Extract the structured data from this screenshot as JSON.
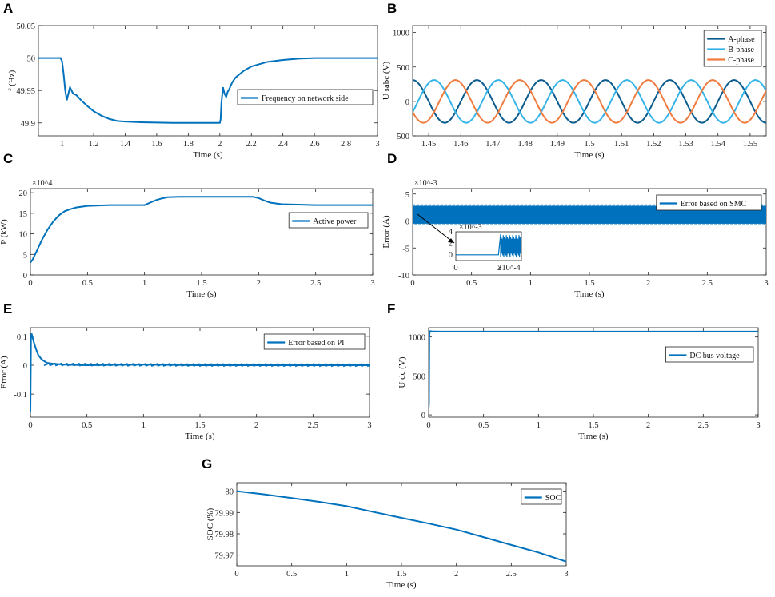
{
  "colors": {
    "blue": "#0072BD",
    "dark_blue": "#0B5C8E",
    "light_blue": "#33B3E8",
    "orange": "#F07B3F",
    "axis": "#222222"
  },
  "chart_data": [
    {
      "id": "A",
      "type": "line",
      "xlabel": "Time (s)",
      "ylabel": "f (Hz)",
      "xlim": [
        0.85,
        3.0
      ],
      "ylim": [
        49.88,
        50.05
      ],
      "xticks": [
        "1",
        "1.2",
        "1.4",
        "1.6",
        "1.8",
        "2",
        "2.2",
        "2.4",
        "2.6",
        "2.8",
        "3"
      ],
      "yticks": [
        "49.9",
        "49.95",
        "50",
        "50.05"
      ],
      "legend": [
        "Frequency on network side"
      ],
      "legend_position": "center-right",
      "series": [
        {
          "name": "Frequency on network side",
          "x": [
            0.85,
            0.99,
            1.0,
            1.01,
            1.02,
            1.03,
            1.04,
            1.05,
            1.06,
            1.07,
            1.09,
            1.12,
            1.16,
            1.2,
            1.25,
            1.3,
            1.35,
            1.4,
            1.5,
            1.6,
            1.7,
            1.8,
            1.9,
            2.0,
            2.005,
            2.01,
            2.02,
            2.03,
            2.04,
            2.05,
            2.06,
            2.07,
            2.08,
            2.1,
            2.15,
            2.2,
            2.3,
            2.4,
            2.5,
            2.6,
            2.8,
            3.0
          ],
          "y": [
            50.0,
            50.0,
            49.995,
            49.975,
            49.95,
            49.935,
            49.945,
            49.955,
            49.95,
            49.945,
            49.943,
            49.935,
            49.926,
            49.918,
            49.911,
            49.906,
            49.903,
            49.902,
            49.901,
            49.9005,
            49.9,
            49.9,
            49.9,
            49.9,
            49.905,
            49.93,
            49.955,
            49.945,
            49.94,
            49.948,
            49.952,
            49.958,
            49.963,
            49.97,
            49.98,
            49.987,
            49.994,
            49.997,
            49.999,
            50.0,
            50.0,
            50.0
          ]
        }
      ]
    },
    {
      "id": "B",
      "type": "line",
      "xlabel": "Time (s)",
      "ylabel": "U sabc (V)",
      "xlim": [
        1.445,
        1.555
      ],
      "ylim": [
        -500,
        1100
      ],
      "xticks": [
        "1.45",
        "1.46",
        "1.47",
        "1.48",
        "1.49",
        "1.5",
        "1.51",
        "1.52",
        "1.53",
        "1.54",
        "1.55"
      ],
      "yticks": [
        "-500",
        "0",
        "500",
        "1000"
      ],
      "legend": [
        "A-phase",
        "B-phase",
        "C-phase"
      ],
      "legend_position": "top-right",
      "amplitude": 310,
      "frequency_hz": 50,
      "series": [
        {
          "name": "A-phase",
          "phase_deg": 0
        },
        {
          "name": "B-phase",
          "phase_deg": -120
        },
        {
          "name": "C-phase",
          "phase_deg": 120
        }
      ]
    },
    {
      "id": "C",
      "type": "line",
      "xlabel": "Time (s)",
      "ylabel": "P (kW)",
      "xlim": [
        0,
        3
      ],
      "ylim": [
        0,
        21
      ],
      "xticks": [
        "0",
        "0.5",
        "1",
        "1.5",
        "2",
        "2.5",
        "3"
      ],
      "yticks": [
        "0",
        "5",
        "10",
        "15",
        "20"
      ],
      "y_exponent": "×10^4",
      "legend": [
        "Active power"
      ],
      "legend_position": "center-right",
      "series": [
        {
          "name": "Active power",
          "x": [
            0,
            0.02,
            0.05,
            0.1,
            0.15,
            0.2,
            0.25,
            0.3,
            0.35,
            0.4,
            0.5,
            0.6,
            0.7,
            0.8,
            1.0,
            1.05,
            1.1,
            1.15,
            1.2,
            1.3,
            1.5,
            1.7,
            1.9,
            1.95,
            2.0,
            2.05,
            2.1,
            2.2,
            2.5,
            3.0
          ],
          "y": [
            3,
            3.8,
            5.5,
            8.5,
            11,
            13,
            14.5,
            15.5,
            16,
            16.4,
            16.8,
            16.9,
            17,
            17,
            17,
            17.6,
            18.2,
            18.6,
            18.9,
            19,
            19,
            19,
            19,
            19,
            18.7,
            18.1,
            17.6,
            17.2,
            17,
            17
          ]
        }
      ]
    },
    {
      "id": "D",
      "type": "line",
      "xlabel": "Time (s)",
      "ylabel": "Error (A)",
      "xlim": [
        0,
        3
      ],
      "ylim": [
        -10,
        6
      ],
      "xticks": [
        "0",
        "0.5",
        "1",
        "1.5",
        "2",
        "2.5",
        "3"
      ],
      "yticks": [
        "-10",
        "-5",
        "0",
        "5"
      ],
      "y_exponent": "×10^-3",
      "legend": [
        "Error based on SMC"
      ],
      "legend_position": "top-right",
      "series": [
        {
          "name": "Error based on SMC",
          "band": [
            -0.5,
            2.8
          ]
        }
      ],
      "inset": {
        "xlim": [
          0,
          3
        ],
        "ylim": [
          -1,
          4
        ],
        "xticks": [
          "0",
          "2"
        ],
        "yticks": [
          "0",
          "2",
          "4"
        ],
        "x_exponent": "×10^-4",
        "y_exponent": "×10^-3"
      }
    },
    {
      "id": "E",
      "type": "line",
      "xlabel": "Time (s)",
      "ylabel": "Error (A)",
      "xlim": [
        0,
        3
      ],
      "ylim": [
        -0.18,
        0.13
      ],
      "xticks": [
        "0",
        "0.5",
        "1",
        "1.5",
        "2",
        "2.5",
        "3"
      ],
      "yticks": [
        "-0.1",
        "0",
        "0.1"
      ],
      "legend": [
        "Error based on PI"
      ],
      "legend_position": "top-right",
      "series": [
        {
          "name": "Error based on PI",
          "x": [
            0,
            0.005,
            0.01,
            0.02,
            0.03,
            0.05,
            0.07,
            0.1,
            0.13,
            0.15,
            0.2,
            0.3,
            0.5,
            1.0,
            1.5,
            2.0,
            2.5,
            3.0
          ],
          "y": [
            -0.16,
            0.09,
            0.11,
            0.095,
            0.08,
            0.055,
            0.035,
            0.02,
            0.012,
            0.008,
            0.005,
            0.002,
            0,
            0.002,
            0,
            0,
            0,
            0
          ]
        }
      ]
    },
    {
      "id": "F",
      "type": "line",
      "xlabel": "Time (s)",
      "ylabel": "U dc (V)",
      "xlim": [
        0,
        3
      ],
      "ylim": [
        -30,
        1120
      ],
      "xticks": [
        "0",
        "0.5",
        "1",
        "1.5",
        "2",
        "2.5",
        "3"
      ],
      "yticks": [
        "0",
        "500",
        "1000"
      ],
      "legend": [
        "DC bus voltage"
      ],
      "legend_position": "center-right",
      "series": [
        {
          "name": "DC bus voltage",
          "x": [
            0,
            0.003,
            0.006,
            0.01,
            0.03,
            0.1,
            1,
            2,
            3
          ],
          "y": [
            80,
            150,
            1000,
            1075,
            1072,
            1070,
            1070,
            1070,
            1070
          ]
        }
      ]
    },
    {
      "id": "G",
      "type": "line",
      "xlabel": "Time (s)",
      "ylabel": "SOC (%)",
      "xlim": [
        0,
        3
      ],
      "ylim": [
        79.965,
        80.004
      ],
      "xticks": [
        "0",
        "0.5",
        "1",
        "1.5",
        "2",
        "2.5",
        "3"
      ],
      "yticks": [
        "79.97",
        "79.98",
        "79.99",
        "80"
      ],
      "legend": [
        "SOC"
      ],
      "legend_position": "top-right",
      "series": [
        {
          "name": "SOC",
          "x": [
            0,
            0.25,
            0.5,
            0.75,
            1,
            1.25,
            1.5,
            1.75,
            2,
            2.25,
            2.5,
            2.75,
            3
          ],
          "y": [
            80.0,
            79.9985,
            79.9968,
            79.995,
            79.993,
            79.9902,
            79.9875,
            79.9848,
            79.982,
            79.9784,
            79.9748,
            79.9712,
            79.967
          ]
        }
      ]
    }
  ]
}
